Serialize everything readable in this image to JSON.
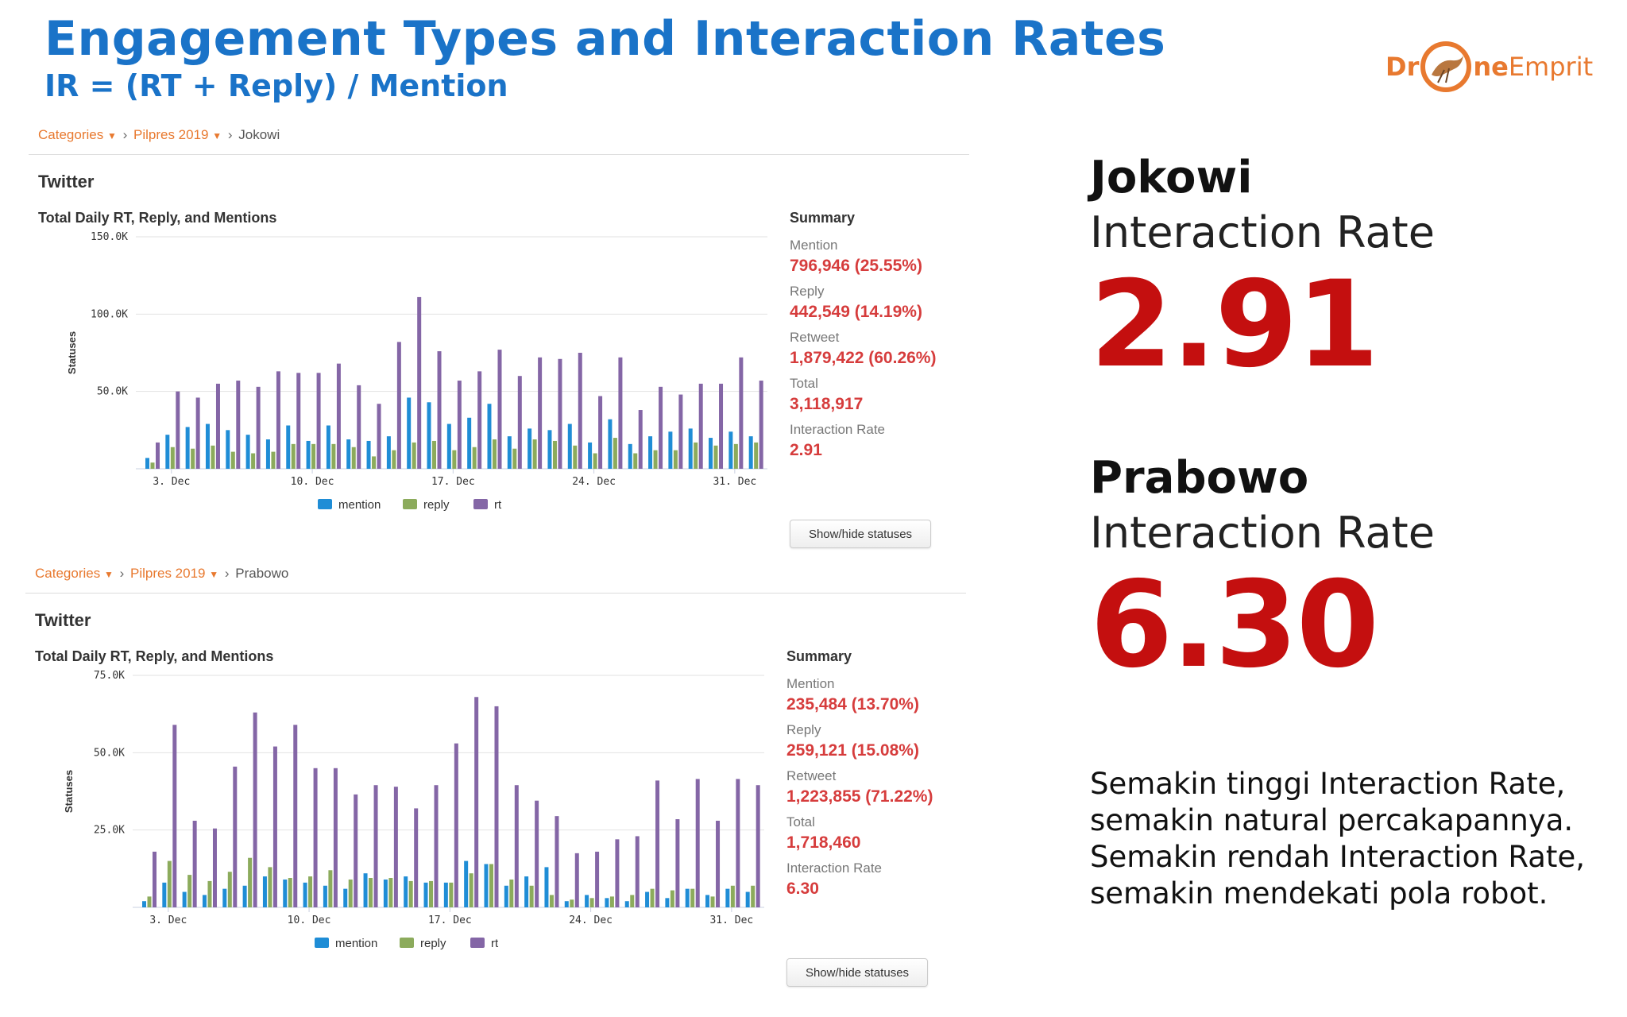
{
  "header": {
    "title": "Engagement Types and Interaction Rates",
    "subtitle": "IR = (RT + Reply) / Mention"
  },
  "logo": {
    "part1": "Dr",
    "part2": "ne",
    "part3": "Emprit"
  },
  "panels": [
    {
      "breadcrumb": {
        "cat": "Categories",
        "group": "Pilpres 2019",
        "entity": "Jokowi"
      },
      "section": "Twitter",
      "chart_title": "Total Daily RT, Reply, and Mentions",
      "summary": {
        "title": "Summary",
        "mention_label": "Mention",
        "mention_value": "796,946 (25.55%)",
        "reply_label": "Reply",
        "reply_value": "442,549 (14.19%)",
        "retweet_label": "Retweet",
        "retweet_value": "1,879,422 (60.26%)",
        "total_label": "Total",
        "total_value": "3,118,917",
        "ir_label": "Interaction Rate",
        "ir_value": "2.91"
      },
      "button": "Show/hide statuses"
    },
    {
      "breadcrumb": {
        "cat": "Categories",
        "group": "Pilpres 2019",
        "entity": "Prabowo"
      },
      "section": "Twitter",
      "chart_title": "Total Daily RT, Reply, and Mentions",
      "summary": {
        "title": "Summary",
        "mention_label": "Mention",
        "mention_value": "235,484 (13.70%)",
        "reply_label": "Reply",
        "reply_value": "259,121 (15.08%)",
        "retweet_label": "Retweet",
        "retweet_value": "1,223,855 (71.22%)",
        "total_label": "Total",
        "total_value": "1,718,460",
        "ir_label": "Interaction Rate",
        "ir_value": "6.30"
      },
      "button": "Show/hide statuses"
    }
  ],
  "right": {
    "jokowi": {
      "name": "Jokowi",
      "label": "Interaction Rate",
      "value": "2.91"
    },
    "prabowo": {
      "name": "Prabowo",
      "label": "Interaction Rate",
      "value": "6.30"
    },
    "note": [
      "Semakin tinggi Interaction Rate,",
      "semakin natural percakapannya.",
      "Semakin rendah Interaction Rate,",
      "semakin mendekati pola robot."
    ]
  },
  "colors": {
    "mention": "#1f8dd6",
    "reply": "#8cab5c",
    "rt": "#8466a6",
    "accent": "#1a73c8",
    "highlight": "#c40f0f"
  },
  "chart_data": [
    {
      "type": "bar",
      "title": "Total Daily RT, Reply, and Mentions",
      "xlabel": "",
      "ylabel": "Statuses",
      "ylim": [
        0,
        150000
      ],
      "yticks": [
        50000,
        100000,
        150000
      ],
      "ytick_labels": [
        "50.0K",
        "100.0K",
        "150.0K"
      ],
      "xtick_labels": [
        "3. Dec",
        "10. Dec",
        "17. Dec",
        "24. Dec",
        "31. Dec"
      ],
      "xtick_index": [
        1,
        8,
        15,
        22,
        29
      ],
      "categories": [
        "1 Dec",
        "2 Dec",
        "3 Dec",
        "4 Dec",
        "5 Dec",
        "6 Dec",
        "7 Dec",
        "8 Dec",
        "9 Dec",
        "10 Dec",
        "11 Dec",
        "12 Dec",
        "13 Dec",
        "14 Dec",
        "15 Dec",
        "16 Dec",
        "17 Dec",
        "18 Dec",
        "19 Dec",
        "20 Dec",
        "21 Dec",
        "22 Dec",
        "23 Dec",
        "24 Dec",
        "25 Dec",
        "26 Dec",
        "27 Dec",
        "28 Dec",
        "29 Dec",
        "30 Dec",
        "31 Dec"
      ],
      "legend": [
        "mention",
        "reply",
        "rt"
      ],
      "series": [
        {
          "name": "mention",
          "values": [
            7000,
            22000,
            27000,
            29000,
            25000,
            22000,
            19000,
            28000,
            18000,
            28000,
            19000,
            18000,
            21000,
            46000,
            43000,
            29000,
            33000,
            42000,
            21000,
            26000,
            25000,
            29000,
            17000,
            32000,
            16000,
            21000,
            24000,
            26000,
            20000,
            24000,
            21000
          ]
        },
        {
          "name": "reply",
          "values": [
            4000,
            14000,
            13000,
            15000,
            11000,
            10000,
            11000,
            16000,
            16000,
            16000,
            14000,
            8000,
            12000,
            17000,
            18000,
            12000,
            14000,
            19000,
            13000,
            19000,
            18000,
            15000,
            10000,
            20000,
            10000,
            12000,
            12000,
            17000,
            15000,
            16000,
            17000
          ]
        },
        {
          "name": "rt",
          "values": [
            17000,
            50000,
            46000,
            55000,
            57000,
            53000,
            63000,
            62000,
            62000,
            68000,
            54000,
            42000,
            82000,
            111000,
            76000,
            57000,
            63000,
            77000,
            60000,
            72000,
            71000,
            75000,
            47000,
            72000,
            38000,
            53000,
            48000,
            55000,
            55000,
            72000,
            57000
          ]
        }
      ]
    },
    {
      "type": "bar",
      "title": "Total Daily RT, Reply, and Mentions",
      "xlabel": "",
      "ylabel": "Statuses",
      "ylim": [
        0,
        75000
      ],
      "yticks": [
        25000,
        50000,
        75000
      ],
      "ytick_labels": [
        "25.0K",
        "50.0K",
        "75.0K"
      ],
      "xtick_labels": [
        "3. Dec",
        "10. Dec",
        "17. Dec",
        "24. Dec",
        "31. Dec"
      ],
      "xtick_index": [
        1,
        8,
        15,
        22,
        29
      ],
      "categories": [
        "1 Dec",
        "2 Dec",
        "3 Dec",
        "4 Dec",
        "5 Dec",
        "6 Dec",
        "7 Dec",
        "8 Dec",
        "9 Dec",
        "10 Dec",
        "11 Dec",
        "12 Dec",
        "13 Dec",
        "14 Dec",
        "15 Dec",
        "16 Dec",
        "17 Dec",
        "18 Dec",
        "19 Dec",
        "20 Dec",
        "21 Dec",
        "22 Dec",
        "23 Dec",
        "24 Dec",
        "25 Dec",
        "26 Dec",
        "27 Dec",
        "28 Dec",
        "29 Dec",
        "30 Dec",
        "31 Dec"
      ],
      "legend": [
        "mention",
        "reply",
        "rt"
      ],
      "series": [
        {
          "name": "mention",
          "values": [
            2000,
            8000,
            5000,
            4000,
            6000,
            7000,
            10000,
            9000,
            8000,
            7000,
            6000,
            11000,
            9000,
            10000,
            8000,
            8000,
            15000,
            14000,
            7000,
            10000,
            13000,
            2000,
            4000,
            3000,
            2000,
            5000,
            3000,
            6000,
            4000,
            6000,
            5000
          ]
        },
        {
          "name": "reply",
          "values": [
            3500,
            15000,
            10500,
            8500,
            11500,
            16000,
            13000,
            9500,
            10000,
            12000,
            9000,
            9500,
            9500,
            8500,
            8500,
            8000,
            11000,
            14000,
            9000,
            7000,
            4000,
            2500,
            3000,
            3500,
            4000,
            6000,
            5500,
            6000,
            3500,
            7000,
            7000
          ]
        },
        {
          "name": "rt",
          "values": [
            18000,
            59000,
            28000,
            25500,
            45500,
            63000,
            52000,
            59000,
            45000,
            45000,
            36500,
            39500,
            39000,
            32000,
            39500,
            53000,
            68000,
            65000,
            39500,
            34500,
            29500,
            17500,
            18000,
            22000,
            23000,
            41000,
            28500,
            41500,
            28000,
            41500,
            39500
          ]
        }
      ]
    }
  ]
}
